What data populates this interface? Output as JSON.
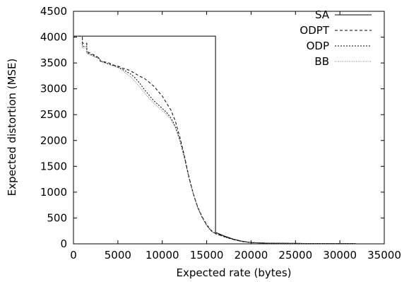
{
  "chart_data": {
    "type": "line",
    "title": "",
    "xlabel": "Expected rate (bytes)",
    "ylabel": "Expected distortion (MSE)",
    "xlim": [
      0,
      35000
    ],
    "ylim": [
      0,
      4500
    ],
    "xticks": [
      0,
      5000,
      10000,
      15000,
      20000,
      25000,
      30000,
      35000
    ],
    "yticks": [
      0,
      500,
      1000,
      1500,
      2000,
      2500,
      3000,
      3500,
      4000,
      4500
    ],
    "grid": false,
    "legend_position": "top-right",
    "series": [
      {
        "name": "SA",
        "dash": "",
        "color": "#000000",
        "x": [
          0,
          16000,
          16000,
          16300,
          17000,
          18000,
          19000,
          20000,
          22000,
          25000,
          28000,
          31800
        ],
        "y": [
          4020,
          4020,
          220,
          200,
          150,
          90,
          50,
          25,
          12,
          8,
          6,
          5
        ]
      },
      {
        "name": "ODPT",
        "dash": "4,3",
        "color": "#000000",
        "x": [
          0,
          1000,
          1000,
          1500,
          1500,
          2500,
          3000,
          3000,
          4000,
          4500,
          5000,
          5500,
          6000,
          6500,
          7000,
          7500,
          8000,
          8500,
          9000,
          9500,
          10000,
          10500,
          11000,
          11500,
          12000,
          12500,
          13000,
          13500,
          14000,
          14500,
          15000,
          15500,
          16000,
          17000,
          18000,
          19000,
          20000,
          22000,
          25000,
          28000,
          31800
        ],
        "y": [
          4020,
          4020,
          3880,
          3880,
          3720,
          3640,
          3580,
          3540,
          3500,
          3460,
          3440,
          3400,
          3380,
          3340,
          3290,
          3240,
          3200,
          3130,
          3060,
          2960,
          2860,
          2720,
          2580,
          2360,
          2050,
          1700,
          1300,
          970,
          710,
          520,
          370,
          260,
          200,
          140,
          85,
          45,
          25,
          12,
          8,
          6,
          5
        ]
      },
      {
        "name": "ODP",
        "dash": "2,2",
        "color": "#000000",
        "x": [
          0,
          1000,
          1000,
          1500,
          1500,
          2500,
          3000,
          3000,
          4000,
          5000,
          5500,
          6000,
          6500,
          7000,
          7500,
          8000,
          8500,
          9000,
          9500,
          10000,
          10500,
          11000,
          11500,
          12000,
          12500,
          13000,
          13500,
          14000,
          14500,
          15000,
          15500,
          16000,
          17000,
          18000,
          19000,
          20000,
          22000,
          25000,
          28000,
          31800
        ],
        "y": [
          4020,
          4020,
          3820,
          3820,
          3700,
          3620,
          3580,
          3540,
          3480,
          3420,
          3380,
          3330,
          3280,
          3200,
          3100,
          2980,
          2880,
          2780,
          2700,
          2620,
          2540,
          2430,
          2260,
          2000,
          1670,
          1290,
          960,
          700,
          510,
          360,
          250,
          195,
          135,
          82,
          44,
          24,
          12,
          8,
          6,
          5
        ]
      },
      {
        "name": "BB",
        "dash": "1,1.5",
        "color": "#777777",
        "x": [
          0,
          1000,
          1000,
          1500,
          1500,
          2500,
          3000,
          3000,
          4000,
          5000,
          5500,
          6000,
          6500,
          7000,
          7500,
          8000,
          8500,
          9000,
          9500,
          10000,
          10500,
          11000,
          11500,
          12000,
          12500,
          13000,
          13500,
          14000,
          14500,
          15000,
          15500,
          16000,
          17000,
          18000,
          19000,
          20000,
          22000,
          25000,
          28000,
          31800
        ],
        "y": [
          4020,
          4020,
          3790,
          3790,
          3680,
          3610,
          3570,
          3530,
          3470,
          3410,
          3360,
          3290,
          3220,
          3130,
          3030,
          2920,
          2820,
          2730,
          2650,
          2580,
          2500,
          2400,
          2230,
          1980,
          1650,
          1270,
          950,
          690,
          500,
          350,
          245,
          190,
          130,
          80,
          42,
          23,
          11,
          7,
          5,
          4
        ]
      }
    ]
  }
}
